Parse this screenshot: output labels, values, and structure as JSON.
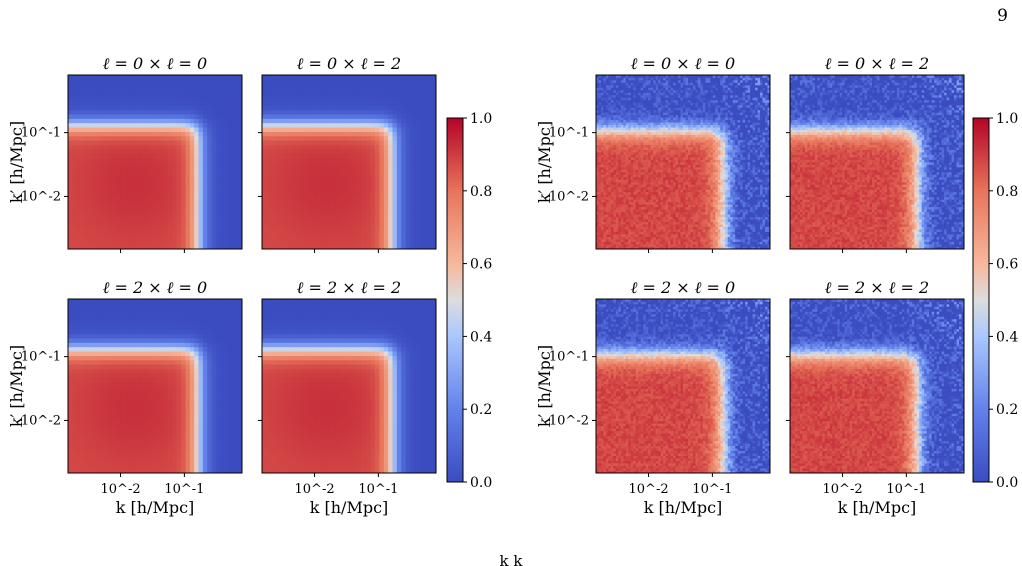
{
  "page": {
    "page_number": "9",
    "caption_fragment": "k k"
  },
  "chart_data": {
    "type": "heatmap",
    "colormap": "coolwarm",
    "colorbar": {
      "min": 0.0,
      "max": 1.0,
      "ticks": [
        "0.0",
        "0.2",
        "0.4",
        "0.6",
        "0.8",
        "1.0"
      ]
    },
    "grid": false,
    "scale": {
      "x": "log",
      "y": "log"
    },
    "xlim": [
      0.0015,
      0.8
    ],
    "ylim": [
      0.0015,
      0.8
    ],
    "xlabel": "k [h/Mpc]",
    "ylabel": "k′ [h/Mpc]",
    "xtick_labels": [
      "10^-2",
      "10^-1"
    ],
    "ytick_labels": [
      "10^-1",
      "10^-2"
    ],
    "cutoff_k_approx": 0.15,
    "matrices": [
      {
        "group": "left",
        "style": "smooth",
        "panels": [
          {
            "title": "ℓ = 0 × ℓ = 0"
          },
          {
            "title": "ℓ = 0 × ℓ = 2"
          },
          {
            "title": "ℓ = 2 × ℓ = 0"
          },
          {
            "title": "ℓ = 2 × ℓ = 2"
          }
        ]
      },
      {
        "group": "right",
        "style": "noisy",
        "panels": [
          {
            "title": "ℓ = 0 × ℓ = 0"
          },
          {
            "title": "ℓ = 0 × ℓ = 2"
          },
          {
            "title": "ℓ = 2 × ℓ = 0"
          },
          {
            "title": "ℓ = 2 × ℓ = 2"
          }
        ]
      }
    ]
  }
}
